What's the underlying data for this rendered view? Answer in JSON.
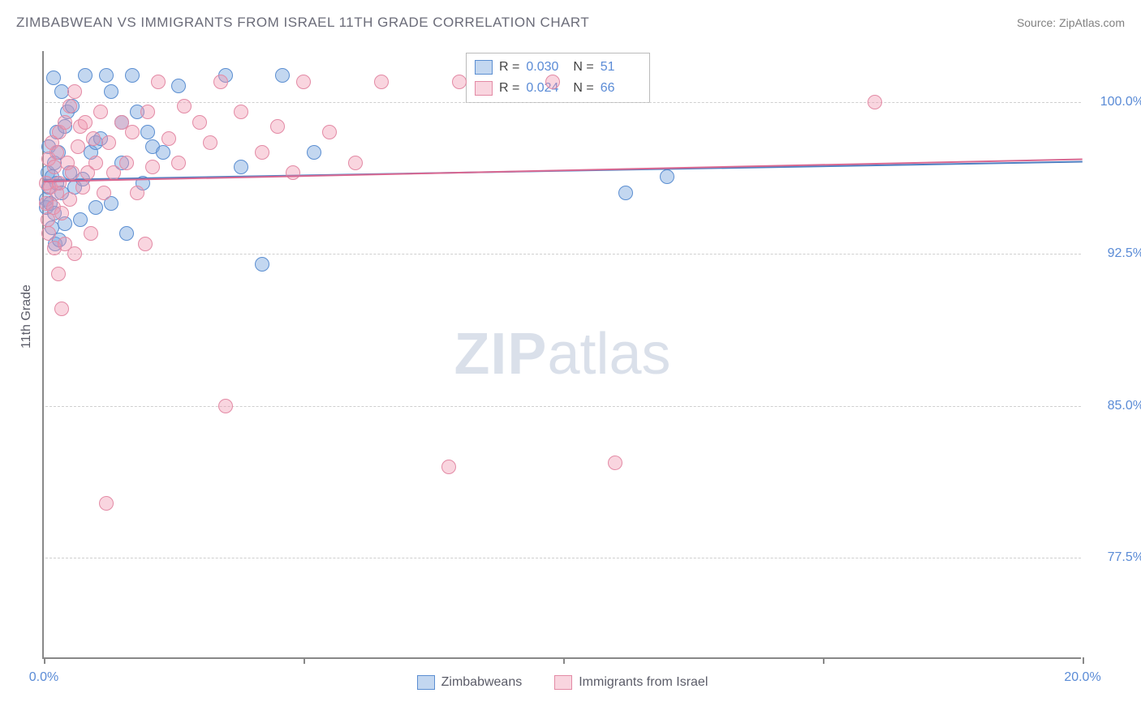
{
  "title": "ZIMBABWEAN VS IMMIGRANTS FROM ISRAEL 11TH GRADE CORRELATION CHART",
  "source": "Source: ZipAtlas.com",
  "y_axis_title": "11th Grade",
  "watermark_bold": "ZIP",
  "watermark_light": "atlas",
  "chart": {
    "type": "scatter",
    "xlim": [
      0,
      20
    ],
    "ylim": [
      72.5,
      102.5
    ],
    "x_ticks": [
      0,
      5,
      10,
      15,
      20
    ],
    "x_tick_labels": [
      "0.0%",
      "",
      "",
      "",
      "20.0%"
    ],
    "y_ticks": [
      77.5,
      85.0,
      92.5,
      100.0
    ],
    "y_tick_labels": [
      "77.5%",
      "85.0%",
      "92.5%",
      "100.0%"
    ],
    "point_radius": 9,
    "background": "#ffffff",
    "grid_color": "#cfcfcf",
    "axis_color": "#888888",
    "series": [
      {
        "name": "Zimbabweans",
        "fill": "rgba(122,166,222,0.45)",
        "stroke": "#5b8ed1",
        "trend": {
          "y_at_x0": 96.2,
          "y_at_x20": 97.1,
          "color": "#4f7fc2"
        },
        "stats": {
          "r": "0.030",
          "n": "51"
        },
        "points": [
          [
            0.05,
            95.2
          ],
          [
            0.05,
            94.8
          ],
          [
            0.08,
            96.5
          ],
          [
            0.1,
            95.8
          ],
          [
            0.1,
            97.8
          ],
          [
            0.12,
            95.0
          ],
          [
            0.15,
            93.8
          ],
          [
            0.15,
            96.3
          ],
          [
            0.18,
            101.2
          ],
          [
            0.2,
            94.5
          ],
          [
            0.2,
            97.0
          ],
          [
            0.22,
            93.0
          ],
          [
            0.25,
            98.5
          ],
          [
            0.25,
            96.0
          ],
          [
            0.28,
            97.5
          ],
          [
            0.3,
            93.2
          ],
          [
            0.35,
            100.5
          ],
          [
            0.35,
            95.5
          ],
          [
            0.4,
            98.8
          ],
          [
            0.4,
            94.0
          ],
          [
            0.45,
            99.5
          ],
          [
            0.5,
            96.5
          ],
          [
            0.55,
            99.8
          ],
          [
            0.6,
            95.8
          ],
          [
            0.7,
            94.2
          ],
          [
            0.75,
            96.2
          ],
          [
            0.8,
            101.3
          ],
          [
            0.9,
            97.5
          ],
          [
            1.0,
            98.0
          ],
          [
            1.0,
            94.8
          ],
          [
            1.1,
            98.2
          ],
          [
            1.2,
            101.3
          ],
          [
            1.3,
            95.0
          ],
          [
            1.3,
            100.5
          ],
          [
            1.5,
            99.0
          ],
          [
            1.5,
            97.0
          ],
          [
            1.6,
            93.5
          ],
          [
            1.7,
            101.3
          ],
          [
            1.8,
            99.5
          ],
          [
            1.9,
            96.0
          ],
          [
            2.0,
            98.5
          ],
          [
            2.1,
            97.8
          ],
          [
            2.3,
            97.5
          ],
          [
            2.6,
            100.8
          ],
          [
            3.5,
            101.3
          ],
          [
            3.8,
            96.8
          ],
          [
            4.2,
            92.0
          ],
          [
            4.6,
            101.3
          ],
          [
            5.2,
            97.5
          ],
          [
            11.2,
            95.5
          ],
          [
            12.0,
            96.3
          ]
        ]
      },
      {
        "name": "Immigrants from Israel",
        "fill": "rgba(240,150,175,0.40)",
        "stroke": "#e38aa5",
        "trend": {
          "y_at_x0": 96.1,
          "y_at_x20": 97.2,
          "color": "#d96891"
        },
        "stats": {
          "r": "0.024",
          "n": "66"
        },
        "points": [
          [
            0.05,
            96.0
          ],
          [
            0.05,
            95.0
          ],
          [
            0.08,
            94.2
          ],
          [
            0.1,
            97.2
          ],
          [
            0.1,
            93.5
          ],
          [
            0.12,
            95.8
          ],
          [
            0.15,
            98.0
          ],
          [
            0.18,
            94.8
          ],
          [
            0.2,
            96.8
          ],
          [
            0.2,
            92.8
          ],
          [
            0.25,
            97.5
          ],
          [
            0.25,
            95.5
          ],
          [
            0.28,
            91.5
          ],
          [
            0.3,
            98.5
          ],
          [
            0.3,
            96.0
          ],
          [
            0.35,
            89.8
          ],
          [
            0.35,
            94.5
          ],
          [
            0.4,
            99.0
          ],
          [
            0.4,
            93.0
          ],
          [
            0.45,
            97.0
          ],
          [
            0.5,
            99.8
          ],
          [
            0.5,
            95.2
          ],
          [
            0.55,
            96.5
          ],
          [
            0.6,
            100.5
          ],
          [
            0.6,
            92.5
          ],
          [
            0.65,
            97.8
          ],
          [
            0.7,
            98.8
          ],
          [
            0.75,
            95.8
          ],
          [
            0.8,
            99.0
          ],
          [
            0.85,
            96.5
          ],
          [
            0.9,
            93.5
          ],
          [
            0.95,
            98.2
          ],
          [
            1.0,
            97.0
          ],
          [
            1.1,
            99.5
          ],
          [
            1.15,
            95.5
          ],
          [
            1.2,
            80.2
          ],
          [
            1.25,
            98.0
          ],
          [
            1.35,
            96.5
          ],
          [
            1.5,
            99.0
          ],
          [
            1.6,
            97.0
          ],
          [
            1.7,
            98.5
          ],
          [
            1.8,
            95.5
          ],
          [
            1.95,
            93.0
          ],
          [
            2.0,
            99.5
          ],
          [
            2.1,
            96.8
          ],
          [
            2.2,
            101.0
          ],
          [
            2.4,
            98.2
          ],
          [
            2.6,
            97.0
          ],
          [
            2.7,
            99.8
          ],
          [
            3.0,
            99.0
          ],
          [
            3.2,
            98.0
          ],
          [
            3.4,
            101.0
          ],
          [
            3.5,
            85.0
          ],
          [
            3.8,
            99.5
          ],
          [
            4.2,
            97.5
          ],
          [
            4.5,
            98.8
          ],
          [
            4.8,
            96.5
          ],
          [
            5.0,
            101.0
          ],
          [
            5.5,
            98.5
          ],
          [
            6.0,
            97.0
          ],
          [
            6.5,
            101.0
          ],
          [
            7.8,
            82.0
          ],
          [
            8.0,
            101.0
          ],
          [
            9.8,
            101.0
          ],
          [
            11.0,
            82.2
          ],
          [
            16.0,
            100.0
          ]
        ]
      }
    ]
  },
  "legend": {
    "series1_label": "Zimbabweans",
    "series2_label": "Immigrants from Israel"
  },
  "stats_labels": {
    "r": "R =",
    "n": "N ="
  }
}
